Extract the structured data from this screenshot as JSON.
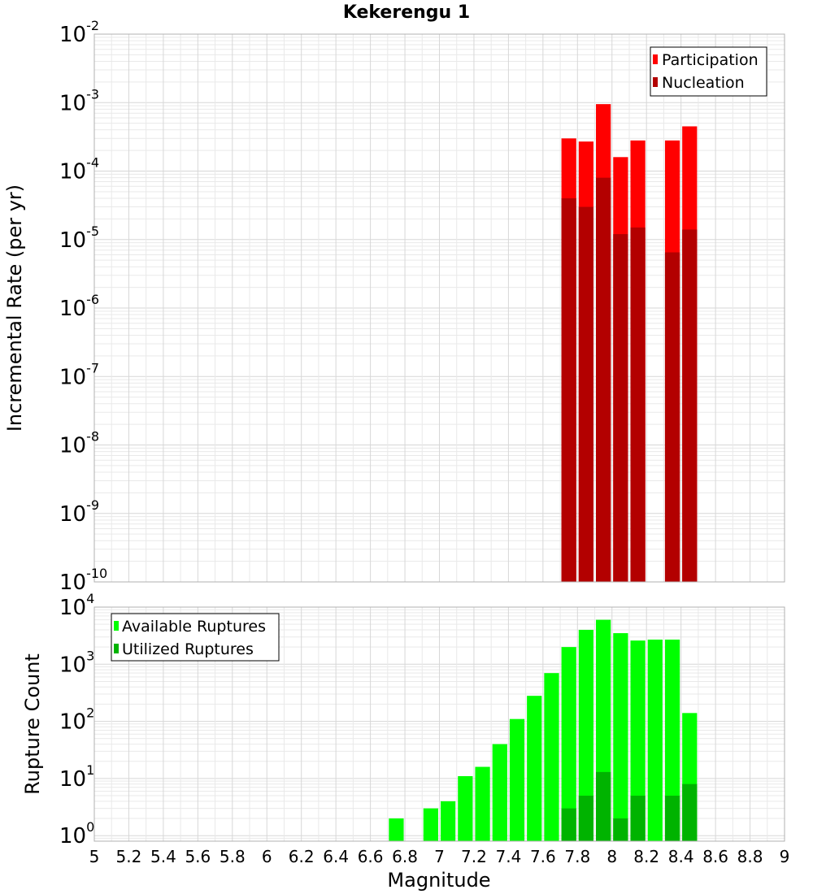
{
  "chart_data": [
    {
      "type": "bar",
      "title": "Kekerengu 1",
      "ylabel": "Incremental Rate (per yr)",
      "xlabel": "",
      "y_scale": "log",
      "ylim": [
        1e-10,
        0.01
      ],
      "y_ticks": [
        {
          "base": "10",
          "exp": "-2"
        },
        {
          "base": "10",
          "exp": "-3"
        },
        {
          "base": "10",
          "exp": "-4"
        },
        {
          "base": "10",
          "exp": "-5"
        },
        {
          "base": "10",
          "exp": "-6"
        },
        {
          "base": "10",
          "exp": "-7"
        },
        {
          "base": "10",
          "exp": "-8"
        },
        {
          "base": "10",
          "exp": "-9"
        },
        {
          "base": "10",
          "exp": "-10"
        }
      ],
      "xlim": [
        5,
        9
      ],
      "bar_width": 0.1,
      "grid": true,
      "legend_position": "top-right",
      "series": [
        {
          "name": "Participation",
          "color": "#ff0000",
          "x": [
            7.75,
            7.85,
            7.95,
            8.05,
            8.15,
            8.35,
            8.45
          ],
          "values": [
            0.0003,
            0.00027,
            0.00095,
            0.00016,
            0.00028,
            0.00028,
            0.00045
          ]
        },
        {
          "name": "Nucleation",
          "color": "#b30000",
          "x": [
            7.75,
            7.85,
            7.95,
            8.05,
            8.15,
            8.35,
            8.45
          ],
          "values": [
            4e-05,
            3e-05,
            8e-05,
            1.2e-05,
            1.5e-05,
            6.5e-06,
            1.4e-05
          ]
        }
      ]
    },
    {
      "type": "bar",
      "title": "",
      "ylabel": "Rupture Count",
      "xlabel": "Magnitude",
      "y_scale": "log",
      "ylim": [
        0.8,
        10000
      ],
      "y_ticks": [
        {
          "base": "10",
          "exp": "4"
        },
        {
          "base": "10",
          "exp": "3"
        },
        {
          "base": "10",
          "exp": "2"
        },
        {
          "base": "10",
          "exp": "1"
        },
        {
          "base": "10",
          "exp": "0"
        }
      ],
      "xlim": [
        5,
        9
      ],
      "x_ticks": [
        "5",
        "5.2",
        "5.4",
        "5.6",
        "5.8",
        "6",
        "6.2",
        "6.4",
        "6.6",
        "6.8",
        "7",
        "7.2",
        "7.4",
        "7.6",
        "7.8",
        "8",
        "8.2",
        "8.4",
        "8.6",
        "8.8",
        "9"
      ],
      "bar_width": 0.1,
      "grid": true,
      "legend_position": "top-left",
      "series": [
        {
          "name": "Available Ruptures",
          "color": "#00ff00",
          "x": [
            6.75,
            6.95,
            7.05,
            7.15,
            7.25,
            7.35,
            7.45,
            7.55,
            7.65,
            7.75,
            7.85,
            7.95,
            8.05,
            8.15,
            8.25,
            8.35,
            8.45
          ],
          "values": [
            2,
            3,
            4,
            11,
            16,
            40,
            110,
            280,
            700,
            2000,
            4000,
            6000,
            3500,
            2600,
            2700,
            2700,
            140
          ]
        },
        {
          "name": "Utilized Ruptures",
          "color": "#00b300",
          "x": [
            7.75,
            7.85,
            7.95,
            8.05,
            8.15,
            8.35,
            8.45
          ],
          "values": [
            3,
            5,
            13,
            2,
            5,
            5,
            8
          ]
        }
      ]
    }
  ]
}
